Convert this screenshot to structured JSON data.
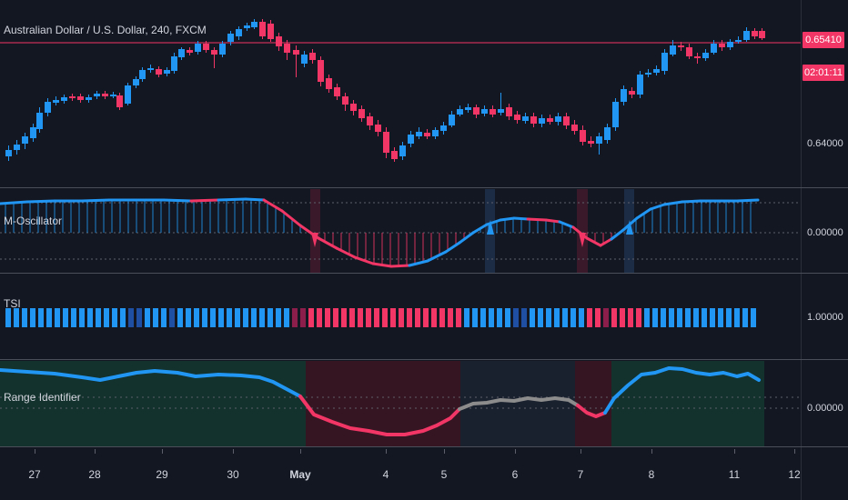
{
  "symbol": {
    "title": "Australian Dollar / U.S. Dollar, 240, FXCM"
  },
  "price_axis": {
    "current_price": "0.65410",
    "countdown": "02:01:11",
    "level_label": "0.64000"
  },
  "panes": {
    "oscillator": {
      "title": "M-Oscillator",
      "zero_label": "0.00000"
    },
    "tsi": {
      "title": "TSI",
      "level_label": "1.00000"
    },
    "range": {
      "title": "Range Identifier",
      "zero_label": "0.00000"
    }
  },
  "x_axis": {
    "labels": [
      "27",
      "28",
      "29",
      "30",
      "May",
      "4",
      "5",
      "6",
      "7",
      "8",
      "11",
      "12"
    ]
  },
  "colors": {
    "background": "#131722",
    "bull": "#2196f3",
    "bear": "#f23665",
    "neutral": "#8c8c8c",
    "dark_blue": "#1e4fa3",
    "dark_red": "#8b1e4a"
  }
}
